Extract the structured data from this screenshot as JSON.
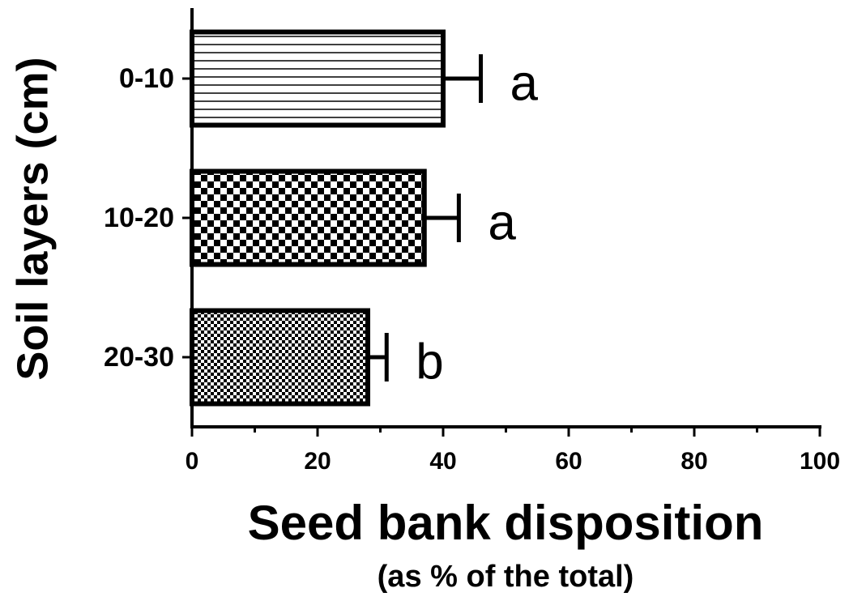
{
  "chart_data": {
    "type": "hbar",
    "ylabel": "Soil layers (cm)",
    "xlabel": "Seed bank disposition",
    "xlabel_note": "(as % of the total)",
    "categories": [
      "0-10",
      "10-20",
      "20-30"
    ],
    "values": [
      40,
      37,
      28
    ],
    "errors": [
      6,
      5.5,
      3
    ],
    "annotations": [
      "a",
      "a",
      "b"
    ],
    "patterns": [
      "horizontal-lines",
      "checker",
      "fine-checker"
    ],
    "color": "#000000",
    "xlim": [
      0,
      100
    ],
    "xticks": [
      0,
      20,
      40,
      60,
      80,
      100
    ],
    "xminorticks": [
      10,
      30,
      50,
      70,
      90
    ],
    "grid": false
  }
}
